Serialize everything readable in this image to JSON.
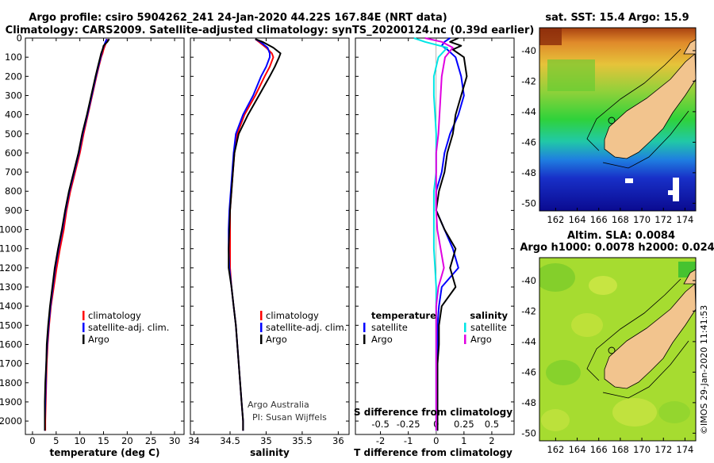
{
  "header": {
    "title_line1": "Argo profile: csiro 5904262_241 24-Jan-2020 44.22S 167.84E (NRT data)",
    "title_line2": "Climatology: CARS2009. Satellite-adjusted climatology: synTS_20200124.nc (0.39d earlier)"
  },
  "colors": {
    "climatology": "#ff0000",
    "satellite": "#0000ff",
    "argo": "#000000",
    "satellite_salinity": "#00e5e5",
    "argo_salinity": "#e000e0",
    "land": "#f2c48e"
  },
  "depth_axis": {
    "ticks": [
      0,
      100,
      200,
      300,
      400,
      500,
      600,
      700,
      800,
      900,
      1000,
      1100,
      1200,
      1300,
      1400,
      1500,
      1600,
      1700,
      1800,
      1900,
      2000
    ],
    "ylim": [
      2070,
      0
    ]
  },
  "chart_data": [
    {
      "type": "line",
      "panel": "temperature",
      "xlabel": "temperature (deg C)",
      "xlim": [
        -1.5,
        32
      ],
      "xticks": [
        0,
        5,
        10,
        15,
        20,
        25,
        30
      ],
      "legend": [
        "climatology",
        "satellite-adj. clim.",
        "Argo"
      ],
      "series": [
        {
          "name": "climatology",
          "depth": [
            5,
            20,
            40,
            60,
            80,
            100,
            150,
            200,
            300,
            400,
            500,
            600,
            700,
            800,
            900,
            1000,
            1100,
            1200,
            1300,
            1400,
            1500,
            1600,
            1700,
            1800,
            1900,
            2000,
            2050
          ],
          "values": [
            15.8,
            15.6,
            15.3,
            15.0,
            14.8,
            14.5,
            14.0,
            13.5,
            12.6,
            11.7,
            10.8,
            10.0,
            9.0,
            8.0,
            7.2,
            6.6,
            5.8,
            5.1,
            4.5,
            3.9,
            3.5,
            3.2,
            3.0,
            2.9,
            2.8,
            2.7,
            2.7
          ]
        },
        {
          "name": "satellite-adj. clim.",
          "depth": [
            5,
            20,
            40,
            60,
            80,
            100,
            150,
            200,
            300,
            400,
            500,
            600,
            700,
            800,
            900,
            1000,
            1100,
            1200,
            1300,
            1400,
            1500,
            1600,
            1700,
            1800,
            1900,
            2000,
            2050
          ],
          "values": [
            15.7,
            15.4,
            15.1,
            14.8,
            14.6,
            14.4,
            13.9,
            13.4,
            12.5,
            11.6,
            10.6,
            9.8,
            8.8,
            7.8,
            7.0,
            6.3,
            5.5,
            4.8,
            4.3,
            3.8,
            3.4,
            3.1,
            2.9,
            2.8,
            2.7,
            2.6,
            2.6
          ]
        },
        {
          "name": "Argo",
          "depth": [
            5,
            20,
            40,
            60,
            80,
            100,
            150,
            200,
            300,
            400,
            500,
            600,
            700,
            800,
            900,
            1000,
            1100,
            1200,
            1300,
            1400,
            1500,
            1600,
            1700,
            1800,
            1900,
            2000,
            2050
          ],
          "values": [
            16.2,
            15.8,
            15.0,
            14.8,
            14.5,
            14.3,
            13.8,
            13.3,
            12.4,
            11.5,
            10.5,
            9.7,
            8.7,
            7.7,
            6.9,
            6.2,
            5.4,
            4.7,
            4.2,
            3.7,
            3.3,
            3.0,
            2.9,
            2.7,
            2.6,
            2.6,
            2.6
          ]
        }
      ]
    },
    {
      "type": "line",
      "panel": "salinity",
      "xlabel": "salinity",
      "xlim": [
        33.95,
        36.15
      ],
      "xticks": [
        34,
        34.5,
        35,
        35.5,
        36
      ],
      "legend": [
        "climatology",
        "satellite-adj. clim.",
        "Argo"
      ],
      "series": [
        {
          "name": "climatology",
          "depth": [
            5,
            20,
            50,
            80,
            100,
            150,
            200,
            300,
            400,
            500,
            600,
            700,
            800,
            900,
            1000,
            1100,
            1200,
            1300,
            1400,
            1500,
            1600,
            1700,
            1800,
            1900,
            2000,
            2050
          ],
          "values": [
            34.85,
            34.9,
            35.0,
            35.08,
            35.1,
            35.05,
            34.98,
            34.85,
            34.7,
            34.6,
            34.56,
            34.54,
            34.52,
            34.5,
            34.5,
            34.5,
            34.5,
            34.52,
            34.55,
            34.58,
            34.6,
            34.62,
            34.64,
            34.66,
            34.68,
            34.68
          ]
        },
        {
          "name": "satellite-adj. clim.",
          "depth": [
            5,
            20,
            50,
            80,
            100,
            150,
            200,
            300,
            400,
            500,
            600,
            700,
            800,
            900,
            1000,
            1100,
            1200,
            1300,
            1400,
            1500,
            1600,
            1700,
            1800,
            1900,
            2000,
            2050
          ],
          "values": [
            34.85,
            34.92,
            35.02,
            35.05,
            35.05,
            35.0,
            34.93,
            34.82,
            34.68,
            34.58,
            34.55,
            34.53,
            34.51,
            34.49,
            34.48,
            34.48,
            34.49,
            34.52,
            34.55,
            34.58,
            34.6,
            34.62,
            34.64,
            34.66,
            34.68,
            34.68
          ]
        },
        {
          "name": "Argo",
          "depth": [
            5,
            20,
            50,
            80,
            100,
            150,
            200,
            300,
            400,
            500,
            600,
            700,
            800,
            900,
            1000,
            1100,
            1200,
            1300,
            1400,
            1500,
            1600,
            1700,
            1800,
            1900,
            2000,
            2050
          ],
          "values": [
            34.85,
            34.95,
            35.1,
            35.2,
            35.18,
            35.12,
            35.05,
            34.9,
            34.75,
            34.62,
            34.56,
            34.54,
            34.52,
            34.5,
            34.49,
            34.48,
            34.48,
            34.52,
            34.55,
            34.58,
            34.6,
            34.62,
            34.64,
            34.66,
            34.68,
            34.68
          ]
        }
      ],
      "annotation": [
        "Argo Australia",
        "PI: Susan Wijffels"
      ]
    },
    {
      "type": "line",
      "panel": "difference",
      "xlabel": "T difference from climatology",
      "xlabel_top": "S difference from climatology",
      "xlim": [
        -2.9,
        2.8
      ],
      "xticks": [
        -2,
        -1,
        0,
        1,
        2
      ],
      "xticks_s": [
        "-0.5",
        "-0.25",
        "0",
        "0.25",
        "0.5"
      ],
      "legend_left_title": "temperature",
      "legend_right_title": "salinity",
      "legend_left": [
        "satellite",
        "Argo"
      ],
      "legend_right": [
        "satellite",
        "Argo"
      ],
      "series": [
        {
          "name": "temperature satellite",
          "depth": [
            0,
            20,
            40,
            60,
            100,
            200,
            300,
            400,
            500,
            600,
            700,
            800,
            900,
            1000,
            1100,
            1200,
            1300,
            1400,
            1500,
            1600,
            1700,
            1800,
            1900,
            2000,
            2050
          ],
          "values": [
            0.5,
            0.3,
            0.2,
            0.4,
            0.7,
            0.9,
            1.0,
            0.8,
            0.5,
            0.3,
            0.2,
            0,
            0,
            0.3,
            0.6,
            0.8,
            0.2,
            0.1,
            0.05,
            0.05,
            0.05,
            0.05,
            0.05,
            0.05,
            0.05
          ]
        },
        {
          "name": "temperature Argo",
          "depth": [
            0,
            20,
            40,
            60,
            100,
            200,
            300,
            400,
            500,
            600,
            700,
            800,
            900,
            1000,
            1100,
            1200,
            1300,
            1400,
            1500,
            1600,
            1700,
            1800,
            1900,
            2000,
            2050
          ],
          "values": [
            0.8,
            0.5,
            0.9,
            0.6,
            1.0,
            1.1,
            0.9,
            0.7,
            0.6,
            0.4,
            0.3,
            0.1,
            0,
            0.3,
            0.7,
            0.5,
            0.7,
            0.2,
            0.1,
            0.1,
            0.05,
            0.05,
            0.05,
            0.05,
            0.05
          ]
        },
        {
          "name": "salinity satellite",
          "depth": [
            0,
            20,
            50,
            100,
            200,
            300,
            400,
            500,
            600,
            700,
            800,
            900,
            1000,
            1100,
            1200,
            1300,
            1400,
            1500,
            1600,
            1700,
            1800,
            1900,
            2000,
            2050
          ],
          "values": [
            -0.2,
            -0.1,
            0.1,
            0.02,
            -0.02,
            -0.02,
            -0.01,
            0,
            0,
            0,
            -0.02,
            -0.02,
            -0.02,
            -0.02,
            -0.01,
            0,
            0,
            0,
            0,
            0,
            0,
            0,
            0,
            0
          ]
        },
        {
          "name": "salinity Argo",
          "depth": [
            0,
            20,
            50,
            100,
            200,
            300,
            400,
            500,
            600,
            700,
            800,
            900,
            1000,
            1100,
            1200,
            1300,
            1400,
            1500,
            1600,
            1700,
            1800,
            1900,
            2000,
            2050
          ],
          "values": [
            -0.1,
            0.05,
            0.15,
            0.08,
            0.05,
            0.04,
            0.03,
            0.02,
            0,
            0,
            0,
            0,
            0.01,
            0.04,
            0.07,
            0.02,
            0,
            0,
            0,
            0,
            0,
            0,
            0,
            0
          ]
        }
      ]
    },
    {
      "type": "heatmap",
      "panel": "sst_map",
      "title": "sat. SST: 15.4 Argo: 15.9",
      "xticks": [
        162,
        164,
        166,
        168,
        170,
        172,
        174
      ],
      "yticks": [
        -40,
        -42,
        -44,
        -46,
        -48,
        -50
      ],
      "xlim": [
        160.5,
        175
      ],
      "ylim": [
        -50.5,
        -38.5
      ]
    },
    {
      "type": "heatmap",
      "panel": "sla_map",
      "title_line1": "Altim. SLA: 0.0084",
      "title_line2": "Argo h1000: 0.0078 h2000: 0.024",
      "xticks": [
        162,
        164,
        166,
        168,
        170,
        172,
        174
      ],
      "yticks": [
        -40,
        -42,
        -44,
        -46,
        -48,
        -50
      ],
      "xlim": [
        160.5,
        175
      ],
      "ylim": [
        -50.5,
        -38.5
      ]
    }
  ],
  "footer": {
    "credit": "©IMOS 29-Jan-2020 11:41:53"
  }
}
